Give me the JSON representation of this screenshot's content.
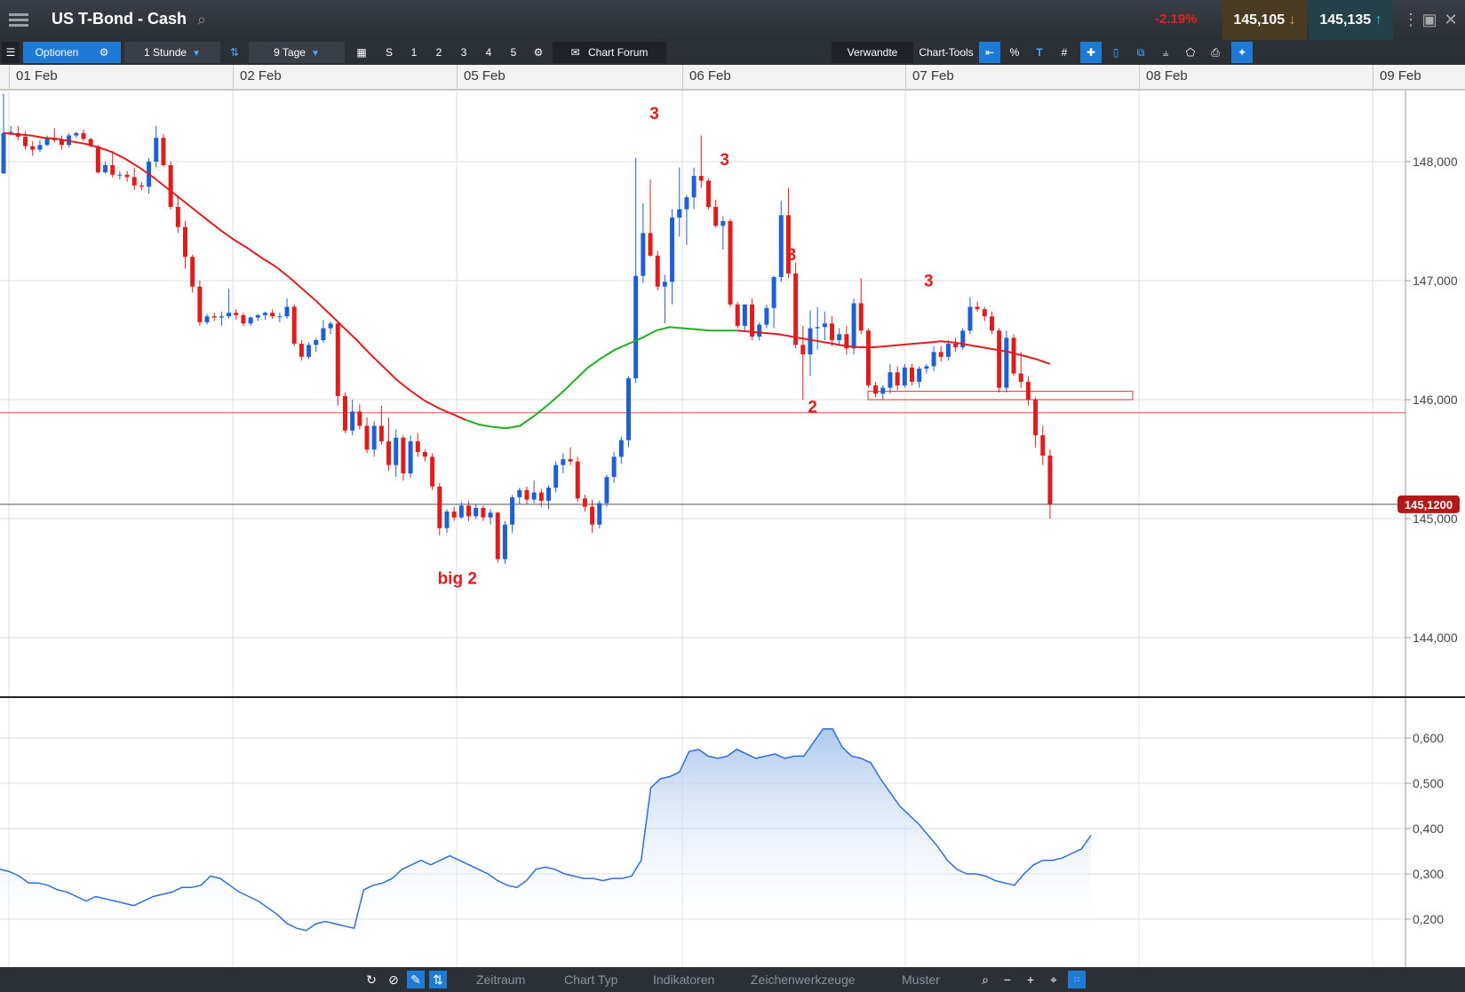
{
  "window": {
    "title": "US T-Bond - Cash",
    "change": "-2.19%",
    "bid": "145,105",
    "ask": "145,135"
  },
  "toolbar": {
    "options_label": "Optionen",
    "interval_label": "1 Stunde",
    "range_label": "9 Tage",
    "quick_buttons": [
      "S",
      "1",
      "2",
      "3",
      "4",
      "5"
    ],
    "chart_forum_label": "Chart Forum",
    "related_label": "Verwandte",
    "chart_tools_label": "Chart-Tools",
    "percent_label": "%"
  },
  "dates": [
    "01 Feb",
    "02 Feb",
    "05 Feb",
    "06 Feb",
    "07 Feb",
    "08 Feb",
    "09 Feb"
  ],
  "bottombar": {
    "items": [
      "Zeitraum",
      "Chart Typ",
      "Indikatoren",
      "Zeichenwerkzeuge",
      "Muster"
    ]
  },
  "colors": {
    "up": "#1f5fd6",
    "down": "#e01d1d",
    "ma_down": "#e01d1d",
    "ma_up": "#1fb01f",
    "accent": "#1d7bd6"
  },
  "chart_data": [
    {
      "type": "candlestick",
      "title": "US T-Bond - Cash",
      "x_labels": [
        "01 Feb",
        "02 Feb",
        "05 Feb",
        "06 Feb",
        "07 Feb",
        "08 Feb",
        "09 Feb"
      ],
      "y_ticks": [
        "148,000",
        "147,000",
        "146,000",
        "145,000",
        "144,000"
      ],
      "ylim": [
        143.5,
        148.6
      ],
      "current_price_label": "145,1200",
      "current_price": 145.12,
      "horizontal_line": 145.89,
      "support_zone": [
        146.0,
        146.07
      ],
      "annotations": [
        {
          "text": "3",
          "x": 0.37,
          "y": 148.36
        },
        {
          "text": "3",
          "x": 0.41,
          "y": 147.97
        },
        {
          "text": "3",
          "x": 0.448,
          "y": 147.17
        },
        {
          "text": "3",
          "x": 0.526,
          "y": 146.95
        },
        {
          "text": "2",
          "x": 0.46,
          "y": 145.89
        },
        {
          "text": "big 2",
          "x": 0.258,
          "y": 144.45
        }
      ],
      "candles": [
        [
          147.9,
          148.57,
          147.9,
          148.24
        ],
        [
          148.25,
          148.3,
          148.22,
          148.25
        ],
        [
          148.24,
          148.3,
          148.18,
          148.21
        ],
        [
          148.21,
          148.25,
          148.1,
          148.13
        ],
        [
          148.13,
          148.17,
          148.05,
          148.1
        ],
        [
          148.1,
          148.18,
          148.08,
          148.14
        ],
        [
          148.14,
          148.22,
          148.13,
          148.2
        ],
        [
          148.2,
          148.28,
          148.16,
          148.18
        ],
        [
          148.18,
          148.22,
          148.1,
          148.14
        ],
        [
          148.14,
          148.24,
          148.12,
          148.22
        ],
        [
          148.22,
          148.25,
          148.2,
          148.24
        ],
        [
          148.24,
          148.27,
          148.17,
          148.19
        ],
        [
          148.19,
          148.2,
          148.12,
          148.13
        ],
        [
          148.13,
          148.14,
          147.9,
          147.91
        ],
        [
          147.91,
          148.0,
          147.9,
          147.97
        ],
        [
          147.97,
          148.07,
          147.87,
          147.89
        ],
        [
          147.89,
          147.92,
          147.85,
          147.89
        ],
        [
          147.89,
          147.92,
          147.83,
          147.87
        ],
        [
          147.87,
          147.95,
          147.76,
          147.8
        ],
        [
          147.8,
          147.83,
          147.76,
          147.79
        ],
        [
          147.79,
          148.03,
          147.73,
          148.0
        ],
        [
          148.0,
          148.3,
          147.95,
          148.2
        ],
        [
          148.2,
          148.23,
          147.96,
          147.97
        ],
        [
          147.97,
          148.0,
          147.6,
          147.62
        ],
        [
          147.62,
          147.72,
          147.4,
          147.45
        ],
        [
          147.45,
          147.5,
          147.1,
          147.2
        ],
        [
          147.2,
          147.22,
          146.9,
          146.95
        ],
        [
          146.95,
          147.0,
          146.62,
          146.65
        ],
        [
          146.65,
          146.72,
          146.63,
          146.7
        ],
        [
          146.7,
          146.73,
          146.66,
          146.69
        ],
        [
          146.69,
          146.74,
          146.62,
          146.7
        ],
        [
          146.7,
          146.93,
          146.68,
          146.73
        ],
        [
          146.73,
          146.76,
          146.67,
          146.71
        ],
        [
          146.71,
          146.73,
          146.62,
          146.64
        ],
        [
          146.64,
          146.7,
          146.62,
          146.69
        ],
        [
          146.69,
          146.72,
          146.66,
          146.71
        ],
        [
          146.71,
          146.74,
          146.67,
          146.73
        ],
        [
          146.73,
          146.76,
          146.68,
          146.7
        ],
        [
          146.7,
          146.73,
          146.65,
          146.7
        ],
        [
          146.7,
          146.85,
          146.68,
          146.78
        ],
        [
          146.78,
          146.8,
          146.45,
          146.47
        ],
        [
          146.47,
          146.5,
          146.33,
          146.36
        ],
        [
          146.36,
          146.48,
          146.34,
          146.46
        ],
        [
          146.46,
          146.52,
          146.4,
          146.5
        ],
        [
          146.5,
          146.67,
          146.48,
          146.6
        ],
        [
          146.6,
          146.66,
          146.55,
          146.64
        ],
        [
          146.64,
          146.66,
          145.95,
          146.03
        ],
        [
          146.03,
          146.06,
          145.72,
          145.74
        ],
        [
          145.74,
          146.0,
          145.7,
          145.9
        ],
        [
          145.9,
          145.96,
          145.75,
          145.78
        ],
        [
          145.78,
          145.85,
          145.55,
          145.58
        ],
        [
          145.58,
          145.82,
          145.52,
          145.78
        ],
        [
          145.78,
          145.95,
          145.62,
          145.65
        ],
        [
          145.65,
          145.85,
          145.4,
          145.45
        ],
        [
          145.45,
          145.75,
          145.35,
          145.68
        ],
        [
          145.68,
          145.7,
          145.32,
          145.38
        ],
        [
          145.38,
          145.7,
          145.34,
          145.65
        ],
        [
          145.65,
          145.72,
          145.52,
          145.56
        ],
        [
          145.56,
          145.58,
          145.48,
          145.52
        ],
        [
          145.52,
          145.55,
          145.24,
          145.27
        ],
        [
          145.27,
          145.3,
          144.86,
          144.92
        ],
        [
          144.92,
          145.08,
          144.88,
          145.06
        ],
        [
          145.06,
          145.1,
          144.98,
          145.01
        ],
        [
          145.01,
          145.14,
          145.0,
          145.11
        ],
        [
          145.11,
          145.15,
          144.98,
          145.02
        ],
        [
          145.02,
          145.12,
          145.0,
          145.09
        ],
        [
          145.09,
          145.11,
          144.98,
          145.01
        ],
        [
          145.01,
          145.08,
          144.95,
          145.05
        ],
        [
          145.05,
          145.06,
          144.63,
          144.66
        ],
        [
          144.66,
          144.98,
          144.62,
          144.95
        ],
        [
          144.95,
          145.2,
          144.88,
          145.18
        ],
        [
          145.18,
          145.26,
          145.12,
          145.24
        ],
        [
          145.24,
          145.27,
          145.12,
          145.16
        ],
        [
          145.16,
          145.32,
          145.13,
          145.22
        ],
        [
          145.22,
          145.25,
          145.1,
          145.15
        ],
        [
          145.15,
          145.28,
          145.08,
          145.26
        ],
        [
          145.26,
          145.48,
          145.22,
          145.45
        ],
        [
          145.45,
          145.55,
          145.38,
          145.5
        ],
        [
          145.5,
          145.6,
          145.45,
          145.48
        ],
        [
          145.48,
          145.52,
          145.14,
          145.17
        ],
        [
          145.17,
          145.2,
          145.06,
          145.1
        ],
        [
          145.1,
          145.16,
          144.88,
          144.95
        ],
        [
          144.95,
          145.15,
          144.92,
          145.13
        ],
        [
          145.13,
          145.37,
          145.1,
          145.35
        ],
        [
          145.35,
          145.56,
          145.3,
          145.52
        ],
        [
          145.52,
          145.69,
          145.46,
          145.66
        ],
        [
          145.66,
          146.2,
          145.6,
          146.18
        ],
        [
          146.18,
          148.03,
          146.14,
          147.04
        ],
        [
          147.04,
          147.65,
          146.98,
          147.4
        ],
        [
          147.4,
          147.85,
          147.2,
          147.21
        ],
        [
          147.21,
          147.25,
          146.92,
          146.95
        ],
        [
          146.95,
          147.05,
          146.64,
          146.99
        ],
        [
          146.99,
          147.6,
          146.8,
          147.53
        ],
        [
          147.53,
          147.95,
          147.37,
          147.6
        ],
        [
          147.6,
          147.72,
          147.3,
          147.7
        ],
        [
          147.7,
          147.95,
          147.6,
          147.88
        ],
        [
          147.88,
          148.22,
          147.78,
          147.84
        ],
        [
          147.84,
          147.86,
          147.6,
          147.62
        ],
        [
          147.62,
          147.68,
          147.45,
          147.46
        ],
        [
          147.46,
          147.54,
          147.26,
          147.5
        ],
        [
          147.5,
          147.52,
          146.78,
          146.8
        ],
        [
          146.8,
          146.82,
          146.6,
          146.62
        ],
        [
          146.62,
          146.8,
          146.58,
          146.8
        ],
        [
          146.8,
          146.85,
          146.5,
          146.53
        ],
        [
          146.53,
          146.65,
          146.5,
          146.63
        ],
        [
          146.63,
          146.8,
          146.6,
          146.77
        ],
        [
          146.77,
          147.04,
          146.6,
          147.03
        ],
        [
          147.03,
          147.67,
          146.99,
          147.55
        ],
        [
          147.55,
          147.78,
          147.02,
          147.06
        ],
        [
          147.06,
          147.15,
          146.43,
          146.46
        ],
        [
          146.46,
          146.62,
          146.0,
          146.38
        ],
        [
          146.38,
          146.75,
          146.2,
          146.6
        ],
        [
          146.6,
          146.78,
          146.42,
          146.61
        ],
        [
          146.61,
          146.74,
          146.5,
          146.64
        ],
        [
          146.64,
          146.7,
          146.45,
          146.5
        ],
        [
          146.5,
          146.6,
          146.45,
          146.55
        ],
        [
          146.55,
          146.62,
          146.38,
          146.43
        ],
        [
          146.43,
          146.85,
          146.38,
          146.81
        ],
        [
          146.81,
          147.02,
          146.55,
          146.58
        ],
        [
          146.58,
          146.6,
          146.1,
          146.12
        ],
        [
          146.12,
          146.15,
          146.02,
          146.05
        ],
        [
          146.05,
          146.12,
          146.0,
          146.1
        ],
        [
          146.1,
          146.3,
          146.05,
          146.23
        ],
        [
          146.23,
          146.28,
          146.08,
          146.12
        ],
        [
          146.12,
          146.3,
          146.1,
          146.27
        ],
        [
          146.27,
          146.3,
          146.12,
          146.15
        ],
        [
          146.15,
          146.28,
          146.1,
          146.26
        ],
        [
          146.26,
          146.3,
          146.22,
          146.28
        ],
        [
          146.28,
          146.45,
          146.24,
          146.4
        ],
        [
          146.4,
          146.45,
          146.32,
          146.36
        ],
        [
          146.36,
          146.5,
          146.33,
          146.47
        ],
        [
          146.47,
          146.52,
          146.4,
          146.44
        ],
        [
          146.44,
          146.6,
          146.42,
          146.58
        ],
        [
          146.58,
          146.86,
          146.55,
          146.78
        ],
        [
          146.78,
          146.82,
          146.74,
          146.76
        ],
        [
          146.76,
          146.78,
          146.66,
          146.7
        ],
        [
          146.7,
          146.74,
          146.55,
          146.58
        ],
        [
          146.58,
          146.6,
          146.06,
          146.1
        ],
        [
          146.1,
          146.58,
          146.06,
          146.52
        ],
        [
          146.52,
          146.55,
          146.2,
          146.22
        ],
        [
          146.22,
          146.4,
          146.1,
          146.15
        ],
        [
          146.15,
          146.2,
          145.95,
          146.0
        ],
        [
          146.0,
          146.02,
          145.6,
          145.7
        ],
        [
          145.7,
          145.78,
          145.45,
          145.53
        ],
        [
          145.53,
          145.58,
          145.0,
          145.12
        ]
      ],
      "moving_average": [
        148.24,
        148.23,
        148.22,
        148.2,
        148.19,
        148.17,
        148.15,
        148.12,
        148.08,
        148.02,
        147.95,
        147.87,
        147.78,
        147.69,
        147.6,
        147.51,
        147.42,
        147.34,
        147.27,
        147.19,
        147.12,
        147.03,
        146.93,
        146.83,
        146.72,
        146.61,
        146.5,
        146.38,
        146.27,
        146.16,
        146.07,
        145.99,
        145.93,
        145.88,
        145.83,
        145.79,
        145.77,
        145.76,
        145.78,
        145.86,
        145.95,
        146.05,
        146.16,
        146.27,
        146.35,
        146.42,
        146.47,
        146.52,
        146.58,
        146.61,
        146.6,
        146.59,
        146.58,
        146.58,
        146.58,
        146.57,
        146.56,
        146.55,
        146.53,
        146.51,
        146.49,
        146.47,
        146.45,
        146.44,
        146.44,
        146.45,
        146.46,
        146.47,
        146.48,
        146.49,
        146.48,
        146.46,
        146.44,
        146.42,
        146.4,
        146.37,
        146.34,
        146.3
      ],
      "ma_up_segment": [
        34,
        54
      ]
    },
    {
      "type": "area",
      "y_ticks": [
        "0,600",
        "0,500",
        "0,400",
        "0,300",
        "0,200"
      ],
      "ylim": [
        0.1,
        0.62
      ],
      "values": [
        0.31,
        0.305,
        0.295,
        0.28,
        0.28,
        0.275,
        0.265,
        0.26,
        0.25,
        0.24,
        0.25,
        0.245,
        0.24,
        0.235,
        0.23,
        0.24,
        0.25,
        0.255,
        0.26,
        0.27,
        0.27,
        0.275,
        0.295,
        0.29,
        0.275,
        0.26,
        0.25,
        0.24,
        0.225,
        0.21,
        0.19,
        0.18,
        0.175,
        0.19,
        0.195,
        0.19,
        0.185,
        0.18,
        0.265,
        0.275,
        0.28,
        0.29,
        0.31,
        0.32,
        0.33,
        0.32,
        0.33,
        0.34,
        0.33,
        0.32,
        0.31,
        0.3,
        0.285,
        0.275,
        0.27,
        0.285,
        0.31,
        0.315,
        0.31,
        0.3,
        0.295,
        0.29,
        0.29,
        0.285,
        0.29,
        0.29,
        0.295,
        0.33,
        0.49,
        0.51,
        0.515,
        0.525,
        0.57,
        0.575,
        0.56,
        0.555,
        0.56,
        0.575,
        0.565,
        0.555,
        0.56,
        0.565,
        0.555,
        0.56,
        0.56,
        0.59,
        0.62,
        0.62,
        0.58,
        0.56,
        0.555,
        0.545,
        0.51,
        0.48,
        0.45,
        0.43,
        0.41,
        0.385,
        0.36,
        0.33,
        0.31,
        0.3,
        0.3,
        0.295,
        0.285,
        0.28,
        0.275,
        0.3,
        0.32,
        0.33,
        0.33,
        0.335,
        0.345,
        0.355,
        0.385
      ]
    }
  ]
}
